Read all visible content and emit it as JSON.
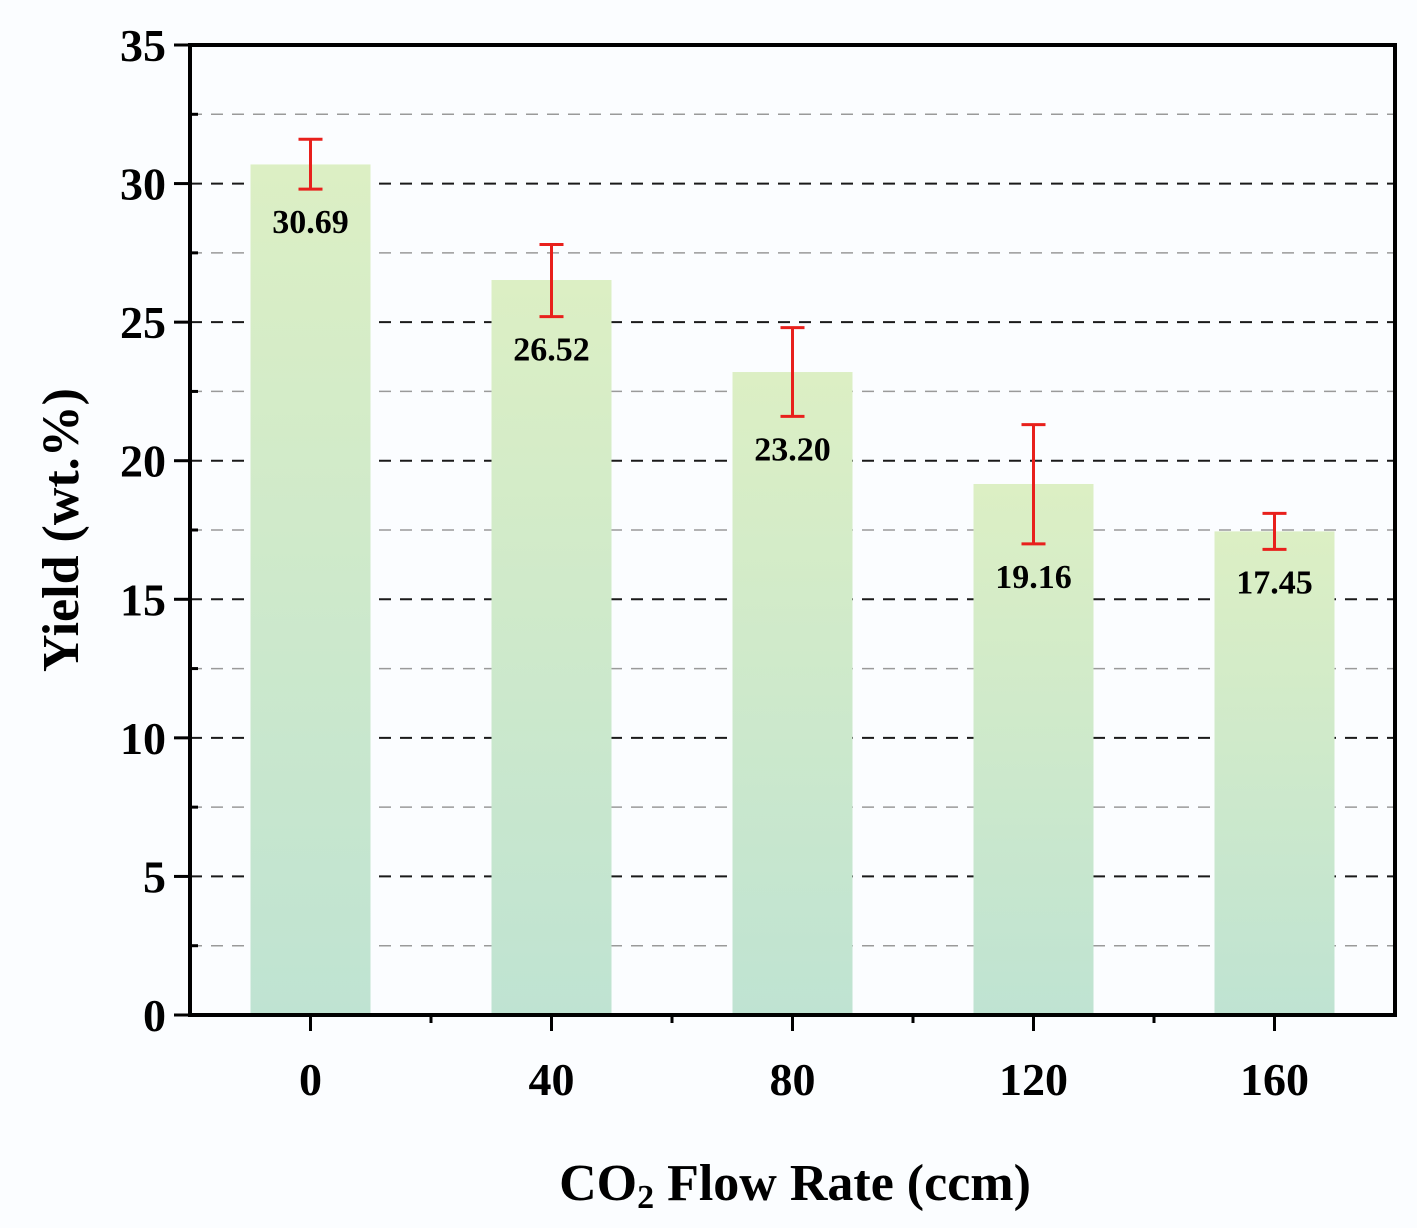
{
  "chart_data": {
    "type": "bar",
    "title": "",
    "xlabel_parts": {
      "prefix": "CO",
      "subscript": "2",
      "suffix": " Flow Rate (ccm)"
    },
    "ylabel": "Yield (wt.%)",
    "categories": [
      "0",
      "40",
      "80",
      "120",
      "160"
    ],
    "values": [
      30.69,
      26.52,
      23.2,
      19.16,
      17.45
    ],
    "value_labels": [
      "30.69",
      "26.52",
      "23.20",
      "19.16",
      "17.45"
    ],
    "error_low": [
      29.8,
      25.2,
      21.6,
      17.0,
      16.8
    ],
    "error_high": [
      31.6,
      27.8,
      24.8,
      21.3,
      18.1
    ],
    "ylim": [
      0,
      35
    ],
    "y_major_step": 5,
    "y_tick_labels": [
      "0",
      "5",
      "10",
      "15",
      "20",
      "25",
      "30",
      "35"
    ],
    "grid": {
      "major": true,
      "minor": true,
      "style": "dashed"
    },
    "colors": {
      "bar_top": "#dcefc4",
      "bar_bottom": "#bfe3d2",
      "error_bar": "#e8201c",
      "major_grid": "#1a1a1a",
      "minor_grid": "#9a9a9a",
      "axis": "#000000",
      "background": "#fbfdff"
    }
  }
}
